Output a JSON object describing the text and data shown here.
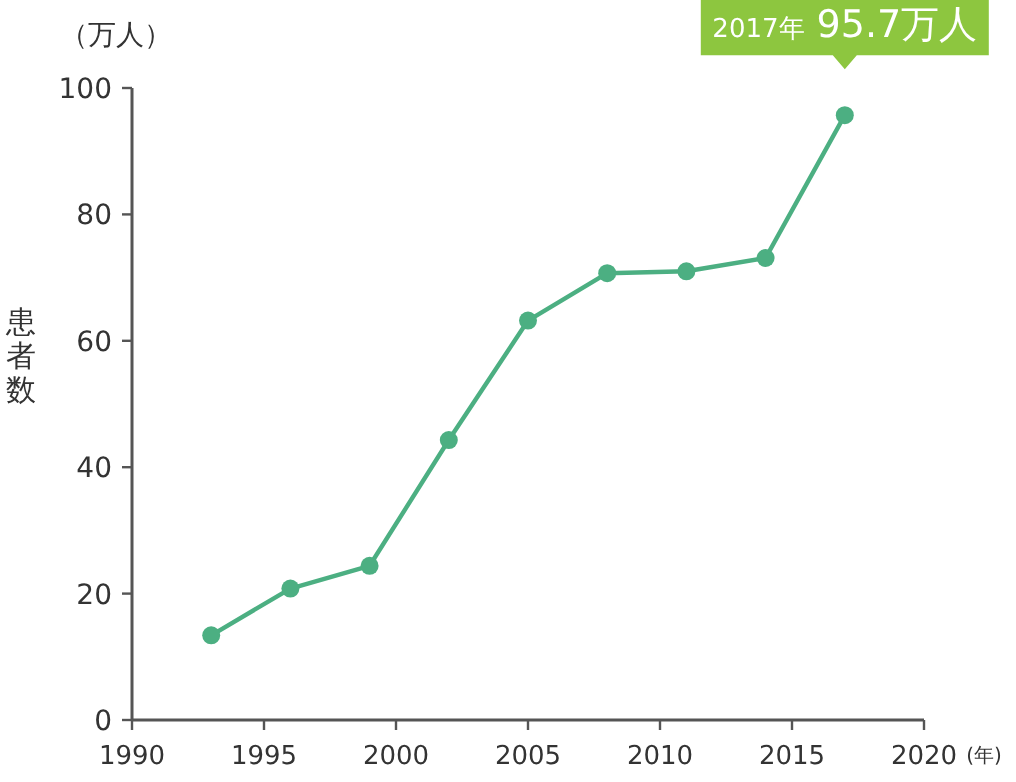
{
  "chart_data": {
    "type": "line",
    "ylabel": "患者数",
    "xlabel": "(年)",
    "annotations": [
      "（万人）",
      {
        "text": "2017年 95.7万人",
        "x": 2017,
        "y": 95.7
      }
    ],
    "x": [
      1993,
      1996,
      1999,
      2002,
      2005,
      2008,
      2011,
      2014,
      2017
    ],
    "series": [
      {
        "color": "#4caf82",
        "values": [
          13.4,
          20.8,
          24.4,
          44.3,
          63.2,
          70.7,
          71.0,
          73.1,
          95.7
        ]
      }
    ],
    "xlim": [
      1990,
      2020
    ],
    "xticks": [
      1990,
      1995,
      2000,
      2005,
      2010,
      2015,
      2020
    ],
    "ylim": [
      0,
      100
    ],
    "yticks": [
      0,
      20,
      40,
      60,
      80,
      100
    ],
    "marker": "circle",
    "grid": false
  }
}
